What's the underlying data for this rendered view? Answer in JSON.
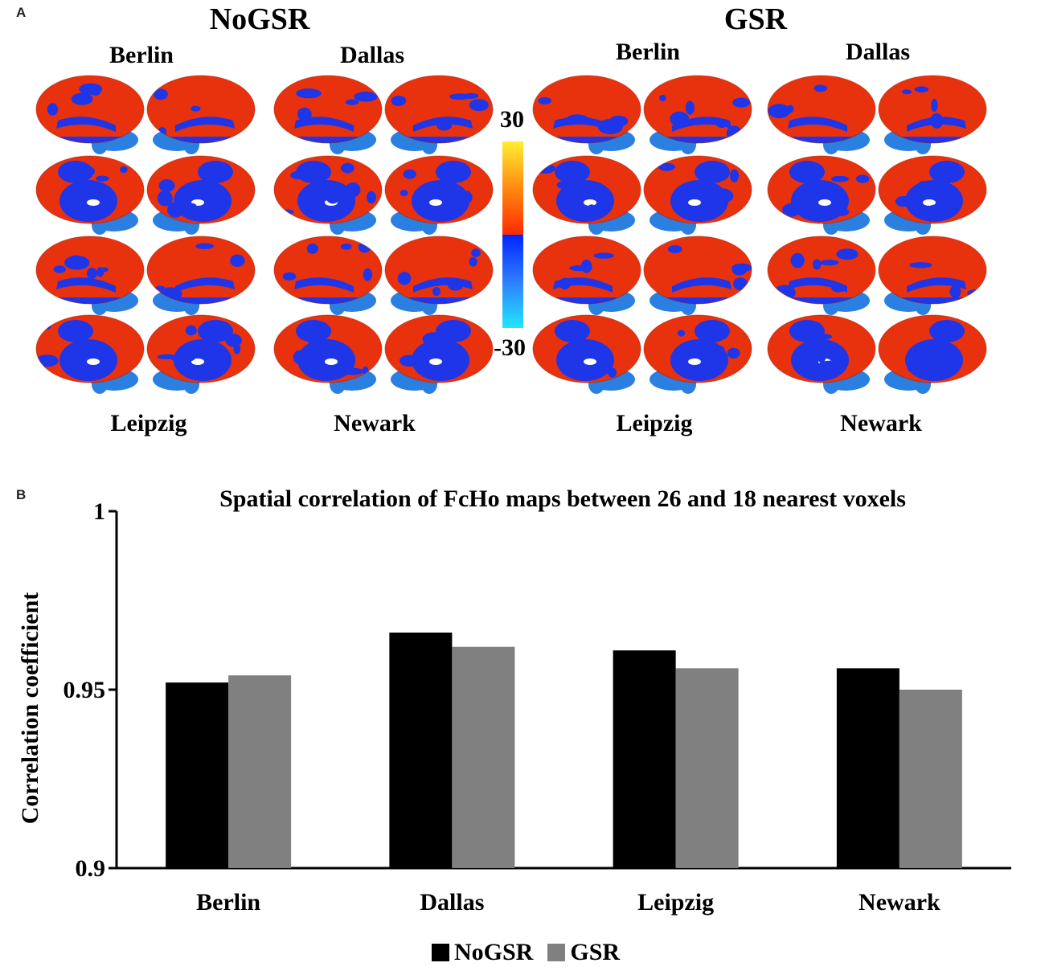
{
  "panels": {
    "a": "A",
    "b": "B"
  },
  "brain_maps": {
    "groups": [
      {
        "title": "NoGSR",
        "top_sites": [
          "Berlin",
          "Dallas"
        ],
        "bottom_sites": [
          "Leipzig",
          "Newark"
        ]
      },
      {
        "title": "GSR",
        "top_sites": [
          "Berlin",
          "Dallas"
        ],
        "bottom_sites": [
          "Leipzig",
          "Newark"
        ]
      }
    ],
    "colorbar": {
      "max_label": "30",
      "min_label": "-30",
      "colors": [
        "#ffee33",
        "#ff8a10",
        "#ff2a00",
        "#0026ff",
        "#2f7dff",
        "#22e6ff"
      ]
    },
    "colors": {
      "positive": "#e8320e",
      "negative": "#1f35e8",
      "cerebellum": "#2a7fe0"
    }
  },
  "chart_data": {
    "type": "bar",
    "title": "Spatial correlation of FcHo maps between 26 and 18 nearest voxels",
    "xlabel": "",
    "ylabel": "Correlation coefficient",
    "categories": [
      "Berlin",
      "Dallas",
      "Leipzig",
      "Newark"
    ],
    "series": [
      {
        "name": "NoGSR",
        "color": "#000000",
        "values": [
          0.952,
          0.966,
          0.961,
          0.956
        ]
      },
      {
        "name": "GSR",
        "color": "#808080",
        "values": [
          0.954,
          0.962,
          0.956,
          0.95
        ]
      }
    ],
    "ylim": [
      0.9,
      1
    ],
    "yticks": [
      "0.9",
      "0.95",
      "1"
    ],
    "ytick_values": [
      0.9,
      0.95,
      1
    ],
    "grid": false,
    "legend": "bottom-center"
  }
}
